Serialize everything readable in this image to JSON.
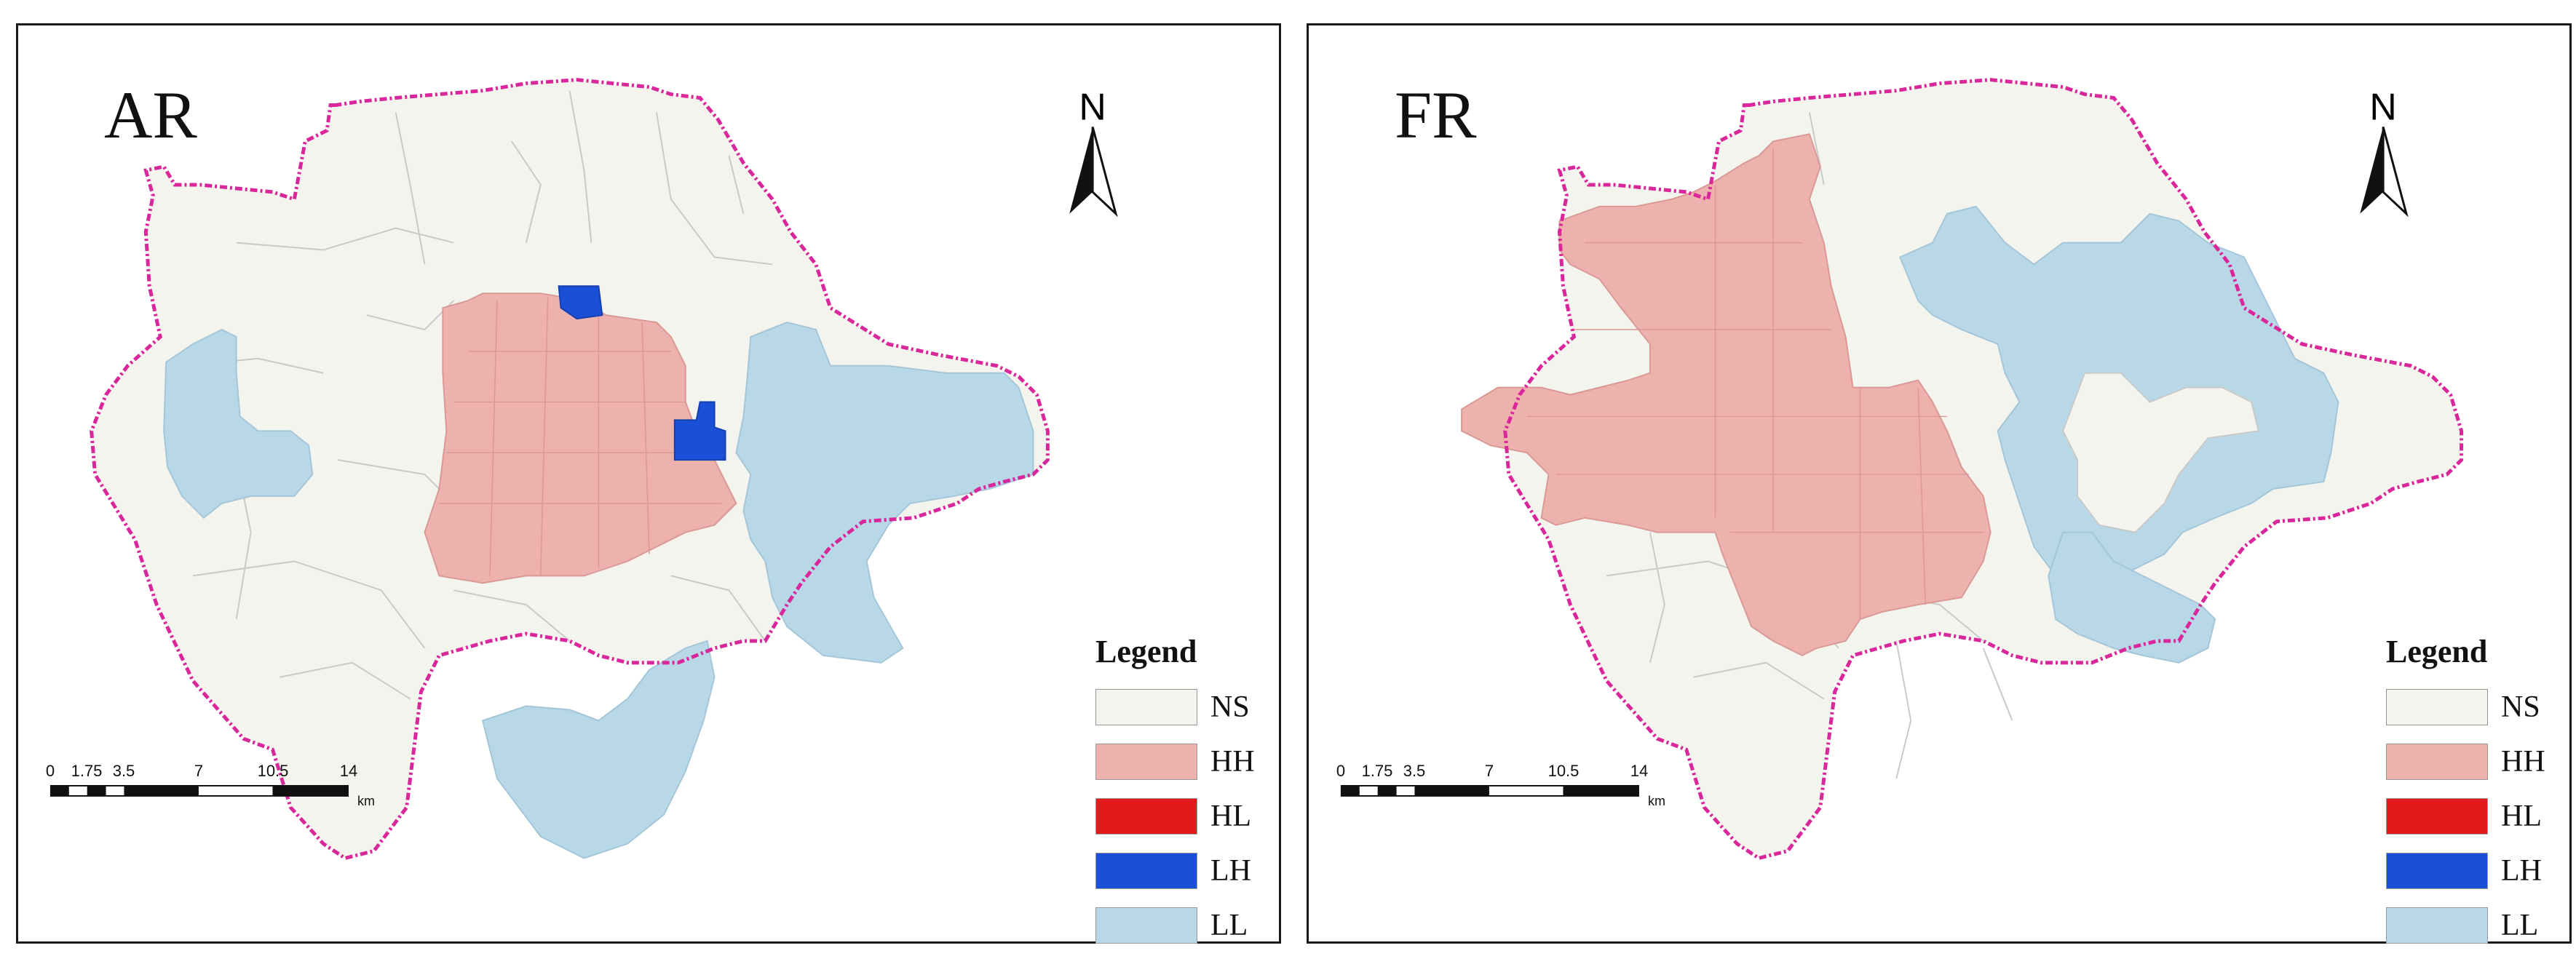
{
  "colors": {
    "NS": "#f4f4ef",
    "HH": "#eeb2ae",
    "HL": "#e31a1c",
    "LH": "#1a4fd8",
    "LL": "#b8d8e8",
    "boundary": "#d9269a",
    "district_lines": "#c9c9c9"
  },
  "legend": {
    "title": "Legend",
    "items": [
      {
        "key": "NS",
        "label": "NS"
      },
      {
        "key": "HH",
        "label": "HH"
      },
      {
        "key": "HL",
        "label": "HL"
      },
      {
        "key": "LH",
        "label": "LH"
      },
      {
        "key": "LL",
        "label": "LL"
      }
    ]
  },
  "north_arrow": {
    "label": "N"
  },
  "scale_bar": {
    "ticks": [
      "0",
      "1.75",
      "3.5",
      "7",
      "10.5",
      "14"
    ],
    "unit": "km"
  },
  "panels": [
    {
      "title": "AR",
      "clusters": [
        "HH (center)",
        "LH (2 small units)",
        "LL (east)",
        "LL (west)",
        "LL (south)"
      ]
    },
    {
      "title": "FR",
      "clusters": [
        "HH (north-west to center)",
        "LL (north-east)",
        "LL (east)"
      ]
    }
  ]
}
